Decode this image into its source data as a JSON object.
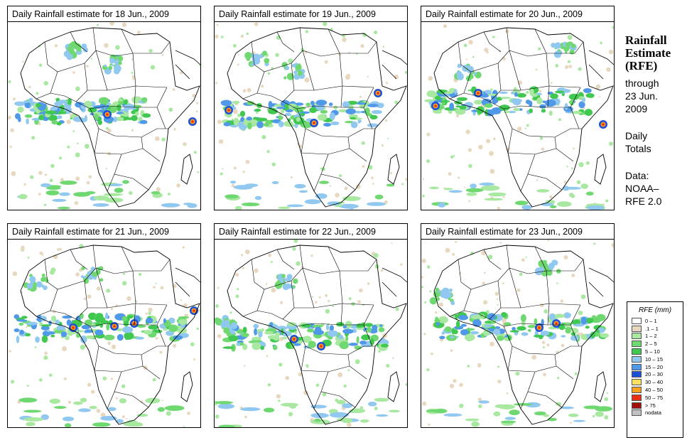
{
  "panels": [
    {
      "title": "Daily Rainfall estimate for  18 Jun., 2009"
    },
    {
      "title": "Daily Rainfall estimate for  19 Jun., 2009"
    },
    {
      "title": "Daily Rainfall estimate for  20 Jun., 2009"
    },
    {
      "title": "Daily Rainfall estimate for  21 Jun., 2009"
    },
    {
      "title": "Daily Rainfall estimate for  22 Jun., 2009"
    },
    {
      "title": "Daily Rainfall estimate for  23 Jun., 2009"
    }
  ],
  "side": {
    "title_line1": "Rainfall",
    "title_line2": "Estimate",
    "title_line3": "(RFE)",
    "through_line1": "through",
    "through_line2": "23 Jun.",
    "through_line3": "2009",
    "daily_line1": "Daily",
    "daily_line2": "Totals",
    "data_line1": "Data:",
    "data_line2": "NOAA–",
    "data_line3": "RFE 2.0"
  },
  "legend": {
    "title": "RFE (mm)",
    "items": [
      {
        "label": "0 – 1",
        "color": "#ffffff"
      },
      {
        "label": ".1 – 1",
        "color": "#e8d8c0"
      },
      {
        "label": "1 – 2",
        "color": "#a8e8a0"
      },
      {
        "label": "2 – 5",
        "color": "#70d870"
      },
      {
        "label": "5 – 10",
        "color": "#40c850"
      },
      {
        "label": "10 – 15",
        "color": "#90c8f0"
      },
      {
        "label": "15 – 20",
        "color": "#5098e8"
      },
      {
        "label": "20 – 30",
        "color": "#1c50d8"
      },
      {
        "label": "30 – 40",
        "color": "#f8e060"
      },
      {
        "label": "40 – 50",
        "color": "#f8a020"
      },
      {
        "label": "50 – 75",
        "color": "#e83010"
      },
      {
        "label": "> 75",
        "color": "#a01008"
      },
      {
        "label": "nodata",
        "color": "#c0c0c0"
      }
    ]
  }
}
